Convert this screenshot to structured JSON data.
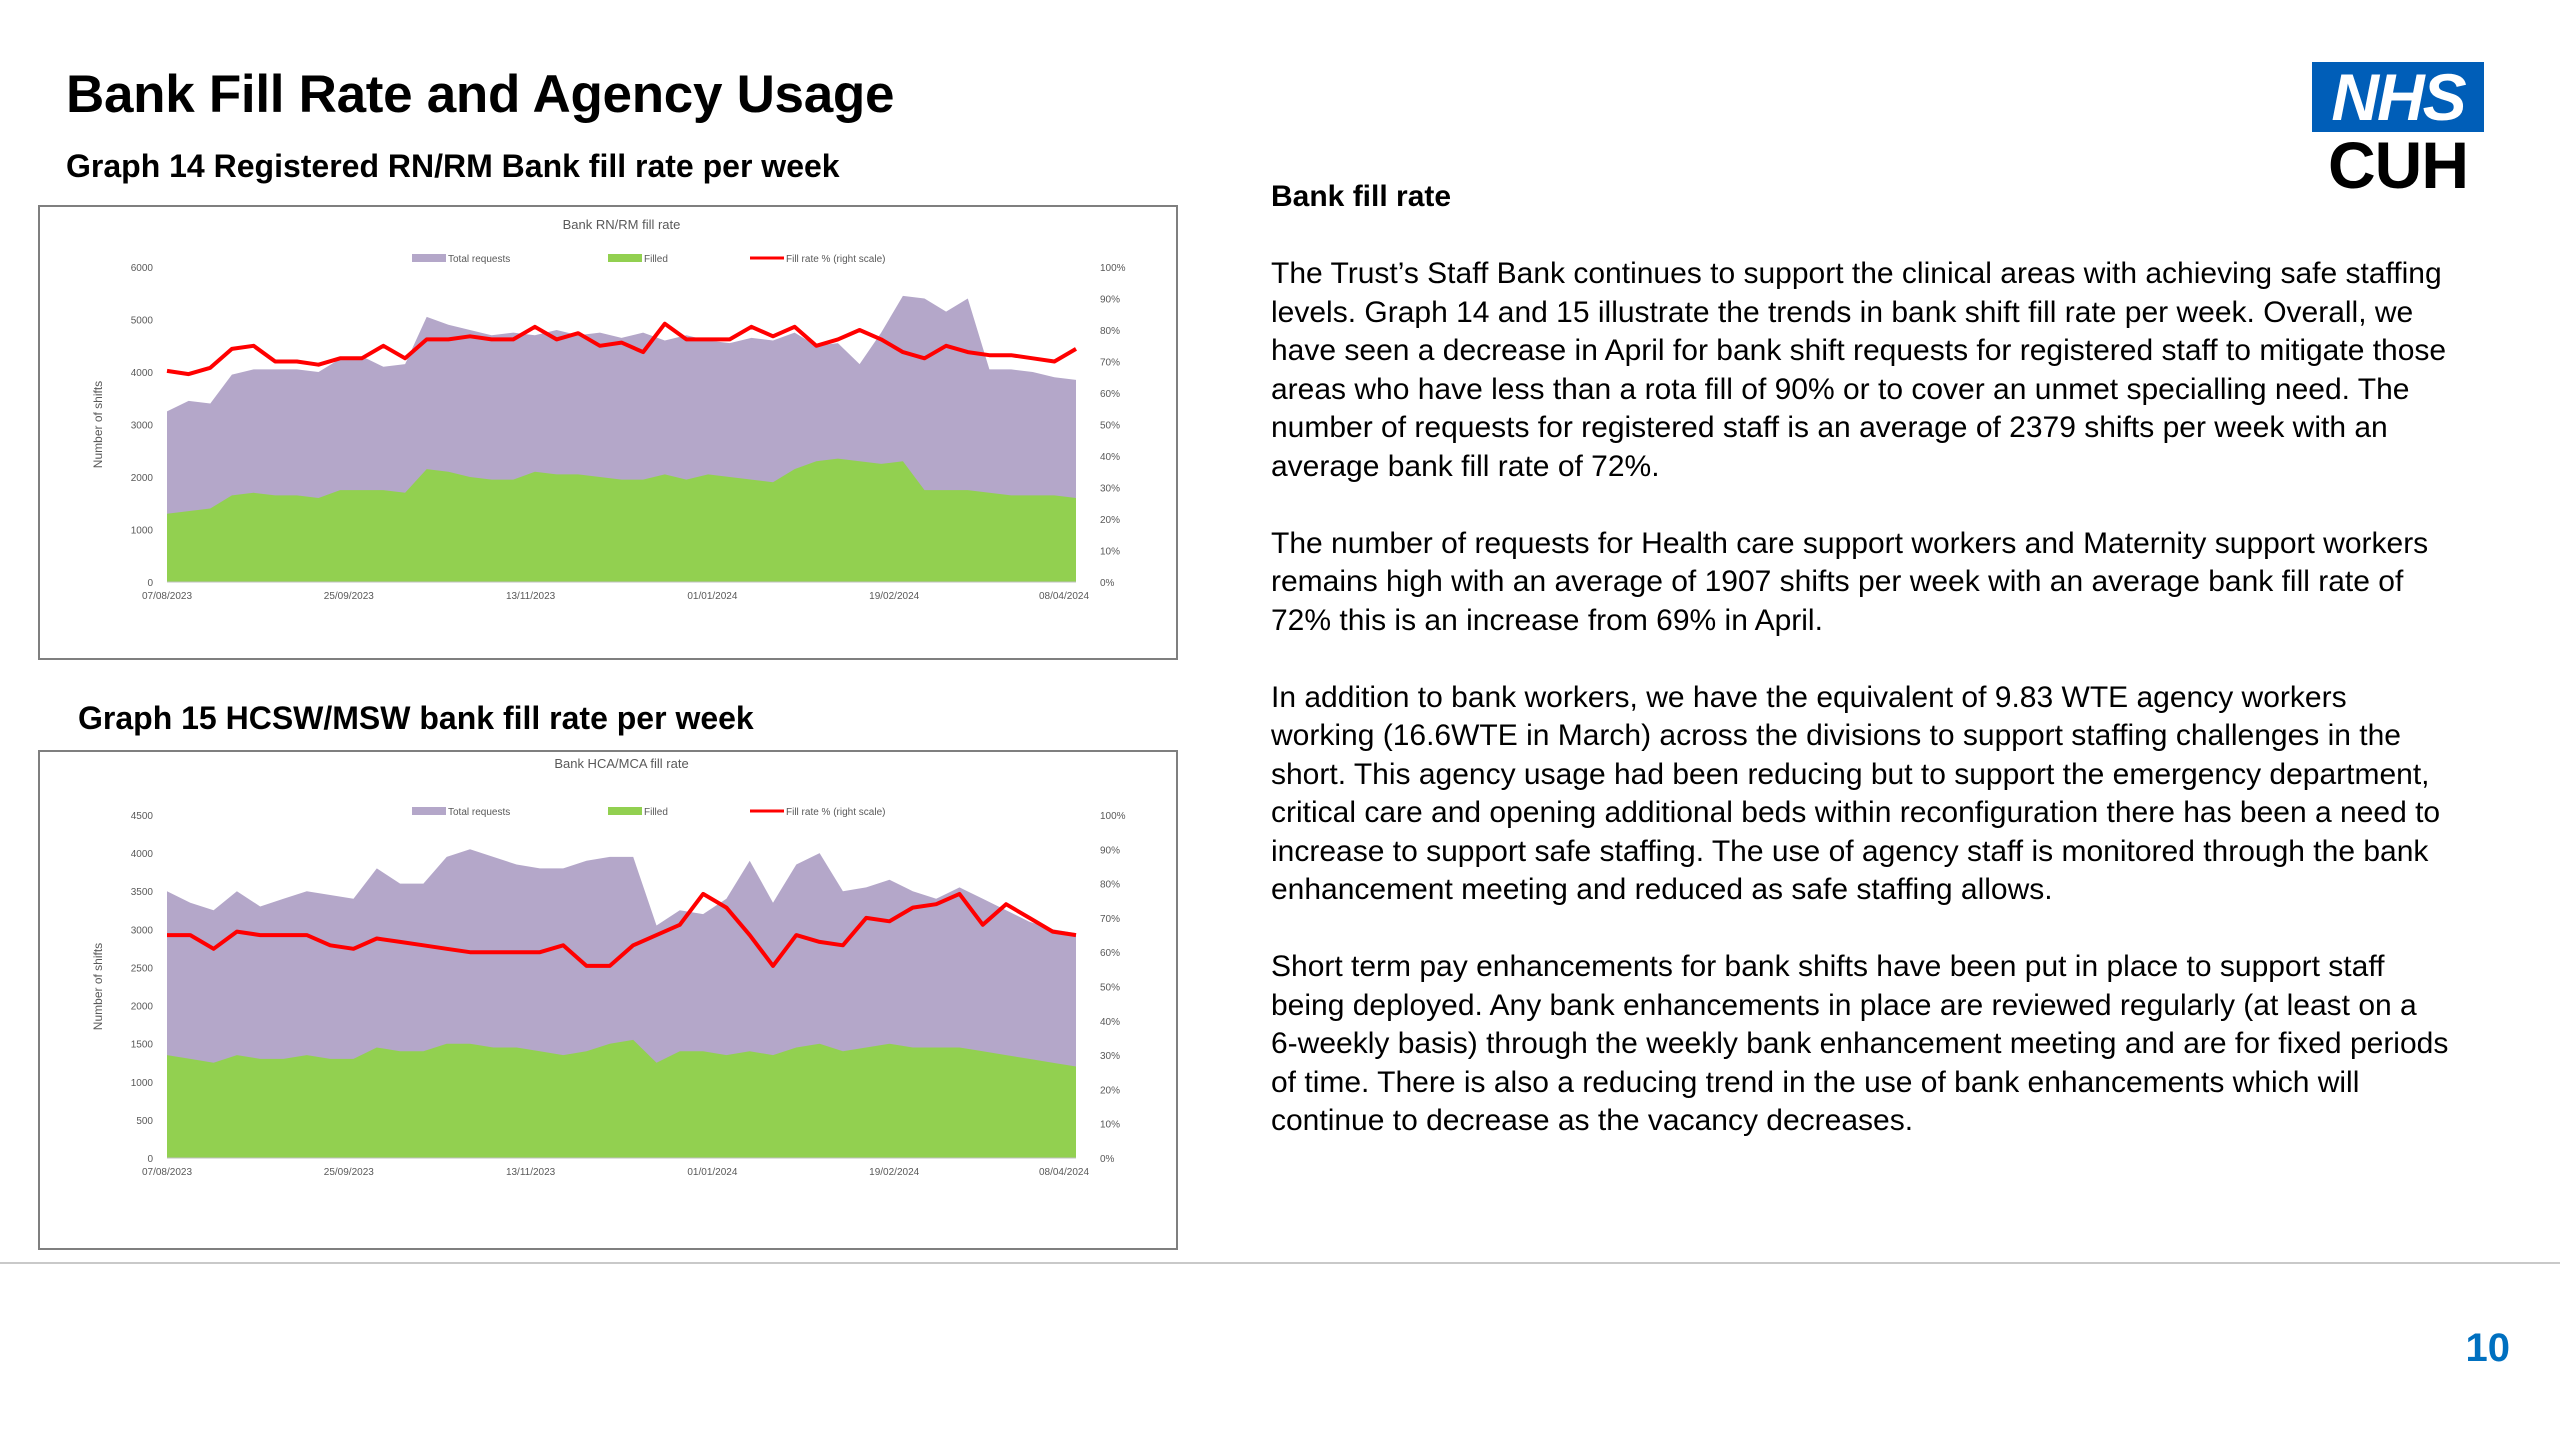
{
  "slide": {
    "title": "Bank Fill Rate and Agency Usage",
    "page_number": "10",
    "logo": {
      "top": "NHS",
      "bottom": "CUH",
      "colors": {
        "nhs_blue": "#005eb8"
      }
    }
  },
  "graphs": {
    "graph14": {
      "caption": "Graph 14 Registered RN/RM Bank fill rate per week",
      "chart_title": "Bank RN/RM fill rate",
      "ylabel": "Number of shifts",
      "legend": [
        "Total requests",
        "Filled",
        "Fill rate % (right scale)"
      ],
      "x_tick_labels": [
        "07/08/2023",
        "25/09/2023",
        "13/11/2023",
        "01/01/2024",
        "19/02/2024",
        "08/04/2024"
      ],
      "y_tick_labels": [
        "0",
        "1000",
        "2000",
        "3000",
        "4000",
        "5000",
        "6000"
      ],
      "y2_tick_labels": [
        "0%",
        "10%",
        "20%",
        "30%",
        "40%",
        "50%",
        "60%",
        "70%",
        "80%",
        "90%",
        "100%"
      ]
    },
    "graph15": {
      "caption": "Graph 15 HCSW/MSW bank fill rate per week",
      "chart_title": "Bank HCA/MCA fill rate",
      "ylabel": "Number of shifts",
      "legend": [
        "Total requests",
        "Filled",
        "Fill rate % (right scale)"
      ],
      "x_tick_labels": [
        "07/08/2023",
        "25/09/2023",
        "13/11/2023",
        "01/01/2024",
        "19/02/2024",
        "08/04/2024"
      ],
      "y_tick_labels": [
        "0",
        "500",
        "1000",
        "1500",
        "2000",
        "2500",
        "3000",
        "3500",
        "4000",
        "4500"
      ],
      "y2_tick_labels": [
        "0%",
        "10%",
        "20%",
        "30%",
        "40%",
        "50%",
        "60%",
        "70%",
        "80%",
        "90%",
        "100%"
      ]
    }
  },
  "text": {
    "heading": "Bank fill rate",
    "paragraphs": [
      "The Trust’s Staff Bank continues to support the clinical areas with achieving safe staffing levels. Graph 14 and 15 illustrate the trends in bank shift fill rate per week. Overall, we have seen a decrease in  April for bank shift requests for registered staff to mitigate those areas who have less than a rota fill of 90% or to cover an unmet specialling need.  The number of requests for registered staff is an average of 2379 shifts per week with an average bank fill rate of 72%.",
      "The number of requests for Health care support workers and Maternity support workers remains high with an average of 1907 shifts per week with an average bank fill rate of 72% this is an increase from 69% in April.",
      "In addition to bank workers, we have the equivalent of 9.83 WTE agency workers working (16.6WTE in March) across the divisions to support staffing challenges in the short. This agency usage had been reducing but to support the emergency department, critical care and opening additional beds within reconfiguration there has been a need to increase to support safe staffing.  The use of agency staff is monitored through the bank enhancement meeting and reduced as safe staffing allows.",
      "Short term pay enhancements for bank shifts have been put in place to support staff being deployed.   Any bank enhancements in place are reviewed regularly (at least on a 6-weekly basis) through the weekly bank enhancement meeting and are for fixed periods of time.  There is also a reducing trend in the use of bank enhancements which will continue to decrease as the vacancy decreases."
    ]
  },
  "chart_data": [
    {
      "type": "area",
      "title": "Bank RN/RM fill rate",
      "ylabel": "Number of shifts",
      "ylim": [
        0,
        6000
      ],
      "y2lim": [
        0,
        100
      ],
      "legend_position": "top",
      "x_tick_labels": [
        "07/08/2023",
        "25/09/2023",
        "13/11/2023",
        "01/01/2024",
        "19/02/2024",
        "08/04/2024"
      ],
      "series": [
        {
          "name": "Total requests",
          "kind": "area",
          "color": "#b4a7c9",
          "values": [
            3250,
            3450,
            3400,
            3950,
            4050,
            4050,
            4050,
            4000,
            4250,
            4300,
            4100,
            4150,
            5050,
            4900,
            4800,
            4700,
            4750,
            4700,
            4800,
            4700,
            4750,
            4650,
            4750,
            4600,
            4700,
            4600,
            4550,
            4650,
            4600,
            4750,
            4500,
            4550,
            4150,
            4750,
            5450,
            5400,
            5150,
            5400,
            4050,
            4050,
            4000,
            3900,
            3850
          ]
        },
        {
          "name": "Filled",
          "kind": "area",
          "color": "#92d050",
          "values": [
            1300,
            1350,
            1400,
            1650,
            1700,
            1650,
            1650,
            1600,
            1750,
            1750,
            1750,
            1700,
            2150,
            2100,
            2000,
            1950,
            1950,
            2100,
            2050,
            2050,
            2000,
            1950,
            1950,
            2050,
            1950,
            2050,
            2000,
            1950,
            1900,
            2150,
            2300,
            2350,
            2300,
            2250,
            2300,
            1750,
            1750,
            1750,
            1700,
            1650,
            1650,
            1650,
            1600
          ]
        },
        {
          "name": "Fill rate % (right scale)",
          "kind": "line",
          "axis": "right",
          "color": "#ff0000",
          "values": [
            67,
            66,
            68,
            74,
            75,
            70,
            70,
            69,
            71,
            71,
            75,
            71,
            77,
            77,
            78,
            77,
            77,
            81,
            77,
            79,
            75,
            76,
            73,
            82,
            77,
            77,
            77,
            81,
            78,
            81,
            75,
            77,
            80,
            77,
            73,
            71,
            75,
            73,
            72,
            72,
            71,
            70,
            74
          ]
        }
      ]
    },
    {
      "type": "area",
      "title": "Bank HCA/MCA fill rate",
      "ylabel": "Number of shifts",
      "ylim": [
        0,
        4500
      ],
      "y2lim": [
        0,
        100
      ],
      "legend_position": "top",
      "x_tick_labels": [
        "07/08/2023",
        "25/09/2023",
        "13/11/2023",
        "01/01/2024",
        "19/02/2024",
        "08/04/2024"
      ],
      "series": [
        {
          "name": "Total requests",
          "kind": "area",
          "color": "#b4a7c9",
          "values": [
            3500,
            3350,
            3250,
            3500,
            3300,
            3400,
            3500,
            3450,
            3400,
            3800,
            3600,
            3600,
            3950,
            4050,
            3950,
            3850,
            3800,
            3800,
            3900,
            3950,
            3950,
            3050,
            3250,
            3200,
            3400,
            3900,
            3350,
            3850,
            4000,
            3500,
            3550,
            3650,
            3500,
            3400,
            3550,
            3400,
            3250,
            3100,
            3000,
            2950
          ]
        },
        {
          "name": "Filled",
          "kind": "area",
          "color": "#92d050",
          "values": [
            1350,
            1300,
            1250,
            1350,
            1300,
            1300,
            1350,
            1300,
            1300,
            1450,
            1400,
            1400,
            1500,
            1500,
            1450,
            1450,
            1400,
            1350,
            1400,
            1500,
            1550,
            1250,
            1400,
            1400,
            1350,
            1400,
            1350,
            1450,
            1500,
            1400,
            1450,
            1500,
            1450,
            1450,
            1450,
            1400,
            1350,
            1300,
            1250,
            1200
          ]
        },
        {
          "name": "Fill rate % (right scale)",
          "kind": "line",
          "axis": "right",
          "color": "#ff0000",
          "values": [
            65,
            65,
            61,
            66,
            65,
            65,
            65,
            62,
            61,
            64,
            63,
            62,
            61,
            60,
            60,
            60,
            60,
            62,
            56,
            56,
            62,
            65,
            68,
            77,
            73,
            65,
            56,
            65,
            63,
            62,
            70,
            69,
            73,
            74,
            77,
            68,
            74,
            70,
            66,
            65
          ]
        }
      ]
    }
  ]
}
